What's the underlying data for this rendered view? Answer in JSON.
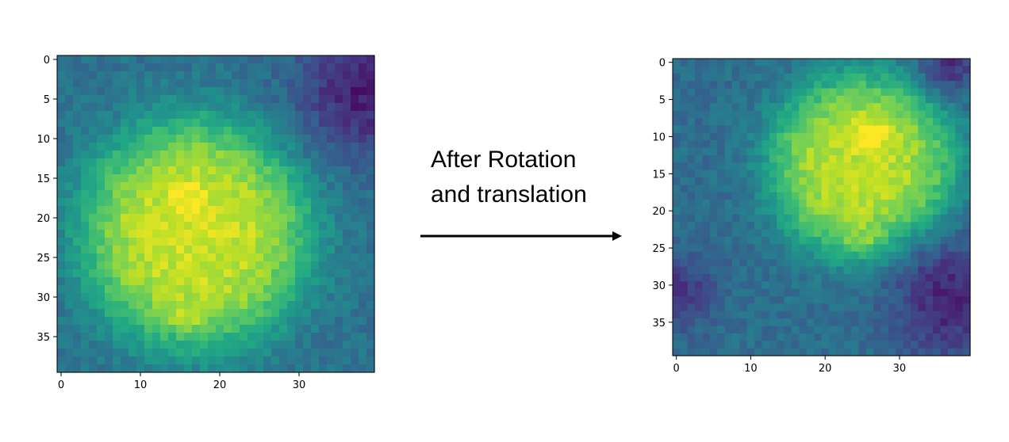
{
  "caption": {
    "line1": "After Rotation",
    "line2": "and translation"
  },
  "colors": {
    "background": "#ffffff",
    "axis": "#000000",
    "colormap": "viridis"
  },
  "chart_data": [
    {
      "type": "heatmap",
      "title": "",
      "xlabel": "",
      "ylabel": "",
      "rows": 40,
      "cols": 40,
      "xlim": [
        -0.5,
        39.5
      ],
      "ylim": [
        39.5,
        -0.5
      ],
      "xticks": [
        "0",
        "10",
        "20",
        "30"
      ],
      "yticks": [
        "0",
        "5",
        "10",
        "15",
        "20",
        "25",
        "30",
        "35"
      ],
      "colormap": "viridis",
      "description_of_field": "bright blob centered near column 17, row 22 (radius ~15); brightest at row 18, col 16; dark region at top-right corner",
      "blobs": [
        {
          "cx": 17,
          "cy": 22,
          "r": 15,
          "peak": 0.92
        },
        {
          "cx": 16,
          "cy": 18,
          "r": 2.5,
          "peak": 1.0
        },
        {
          "cx": 16,
          "cy": 31,
          "r": 3,
          "peak": 0.88
        }
      ],
      "background_level": 0.38,
      "dark_regions": [
        {
          "cx": 38,
          "cy": 4,
          "r": 8,
          "level": 0.08
        }
      ]
    },
    {
      "type": "heatmap",
      "title": "",
      "xlabel": "",
      "ylabel": "",
      "rows": 40,
      "cols": 40,
      "xlim": [
        -0.5,
        39.5
      ],
      "ylim": [
        39.5,
        -0.5
      ],
      "xticks": [
        "0",
        "10",
        "20",
        "30"
      ],
      "yticks": [
        "0",
        "5",
        "10",
        "15",
        "20",
        "25",
        "30",
        "35"
      ],
      "colormap": "viridis",
      "description_of_field": "bright blob centered near column 25, row 14 (radius ~13); brightest at row 10, col 26; dark regions at bottom-right and left edge",
      "blobs": [
        {
          "cx": 25,
          "cy": 14,
          "r": 13,
          "peak": 0.9
        },
        {
          "cx": 26,
          "cy": 10,
          "r": 2.5,
          "peak": 1.0
        },
        {
          "cx": 25,
          "cy": 23,
          "r": 2.5,
          "peak": 0.85
        }
      ],
      "background_level": 0.36,
      "dark_regions": [
        {
          "cx": 37,
          "cy": 32,
          "r": 8,
          "level": 0.1
        },
        {
          "cx": 0,
          "cy": 31,
          "r": 5,
          "level": 0.15
        },
        {
          "cx": 37,
          "cy": 0,
          "r": 4,
          "level": 0.15
        }
      ]
    }
  ]
}
